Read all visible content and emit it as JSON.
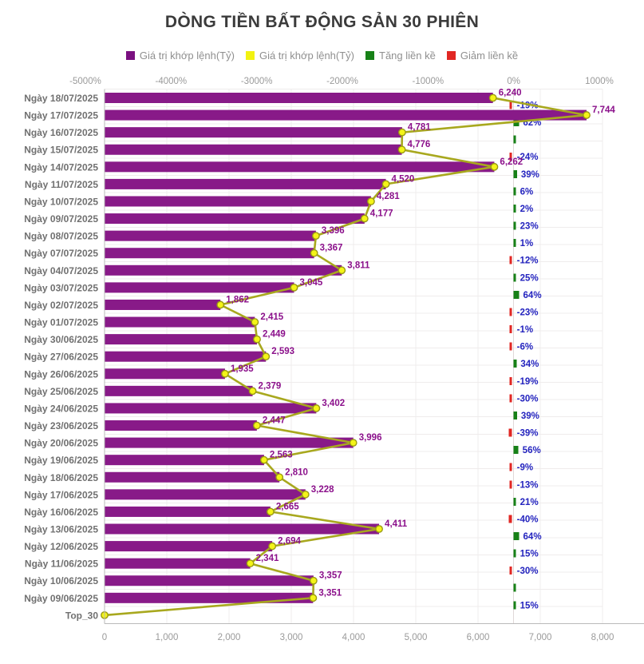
{
  "title": "DÒNG TIỀN BẤT ĐỘNG SẢN 30 PHIÊN",
  "legend": [
    {
      "name": "legend-bar-series",
      "label": "Giá trị khớp lệnh(Tỷ)",
      "color": "#7a1080"
    },
    {
      "name": "legend-line-series",
      "label": "Giá trị khớp lệnh(Tỷ)",
      "color": "#f2f211"
    },
    {
      "name": "legend-increase",
      "label": "Tăng liền kề",
      "color": "#178117"
    },
    {
      "name": "legend-decrease",
      "label": "Giảm liền kề",
      "color": "#e12723"
    }
  ],
  "chart_data": {
    "type": "bar",
    "orientation": "horizontal",
    "title": "DÒNG TIỀN BẤT ĐỘNG SẢN 30 PHIÊN",
    "legend_position": "top",
    "grid": true,
    "top_axis": {
      "unit": "%",
      "range": [
        -5000,
        1000
      ],
      "ticks": [
        -5000,
        -4000,
        -3000,
        -2000,
        -1000,
        0,
        1000
      ],
      "tick_labels": [
        "-5000%",
        "-4000%",
        "-3000%",
        "-2000%",
        "-1000%",
        "0%",
        "1000%"
      ]
    },
    "bottom_axis": {
      "range": [
        0,
        8000
      ],
      "ticks": [
        0,
        1000,
        2000,
        3000,
        4000,
        5000,
        6000,
        7000,
        8000
      ],
      "tick_labels": [
        "0",
        "1,000",
        "2,000",
        "3,000",
        "4,000",
        "5,000",
        "6,000",
        "7,000",
        "8,000"
      ]
    },
    "series_names": {
      "bar": "Giá trị khớp lệnh(Tỷ)",
      "line": "Giá trị khớp lệnh(Tỷ)",
      "increase": "Tăng liền kề",
      "decrease": "Giảm liền kề"
    },
    "rows": [
      {
        "category": "Ngày 18/07/2025",
        "value": 6240,
        "value_label": "6,240",
        "delta_pct": -19,
        "delta_label": "-19%"
      },
      {
        "category": "Ngày 17/07/2025",
        "value": 7744,
        "value_label": "7,744",
        "delta_pct": 62,
        "delta_label": "62%"
      },
      {
        "category": "Ngày 16/07/2025",
        "value": 4781,
        "value_label": "4,781",
        "delta_pct": 0,
        "delta_label": ""
      },
      {
        "category": "Ngày 15/07/2025",
        "value": 4776,
        "value_label": "4,776",
        "delta_pct": -24,
        "delta_label": "-24%"
      },
      {
        "category": "Ngày 14/07/2025",
        "value": 6262,
        "value_label": "6,262",
        "delta_pct": 39,
        "delta_label": "39%"
      },
      {
        "category": "Ngày 11/07/2025",
        "value": 4520,
        "value_label": "4,520",
        "delta_pct": 6,
        "delta_label": "6%"
      },
      {
        "category": "Ngày 10/07/2025",
        "value": 4281,
        "value_label": "4,281",
        "delta_pct": 2,
        "delta_label": "2%"
      },
      {
        "category": "Ngày 09/07/2025",
        "value": 4177,
        "value_label": "4,177",
        "delta_pct": 23,
        "delta_label": "23%"
      },
      {
        "category": "Ngày 08/07/2025",
        "value": 3396,
        "value_label": "3,396",
        "delta_pct": 1,
        "delta_label": "1%"
      },
      {
        "category": "Ngày 07/07/2025",
        "value": 3367,
        "value_label": "3,367",
        "delta_pct": -12,
        "delta_label": "-12%"
      },
      {
        "category": "Ngày 04/07/2025",
        "value": 3811,
        "value_label": "3,811",
        "delta_pct": 25,
        "delta_label": "25%"
      },
      {
        "category": "Ngày 03/07/2025",
        "value": 3045,
        "value_label": "3,045",
        "delta_pct": 64,
        "delta_label": "64%"
      },
      {
        "category": "Ngày 02/07/2025",
        "value": 1862,
        "value_label": "1,862",
        "delta_pct": -23,
        "delta_label": "-23%"
      },
      {
        "category": "Ngày 01/07/2025",
        "value": 2415,
        "value_label": "2,415",
        "delta_pct": -1,
        "delta_label": "-1%"
      },
      {
        "category": "Ngày 30/06/2025",
        "value": 2449,
        "value_label": "2,449",
        "delta_pct": -6,
        "delta_label": "-6%"
      },
      {
        "category": "Ngày 27/06/2025",
        "value": 2593,
        "value_label": "2,593",
        "delta_pct": 34,
        "delta_label": "34%"
      },
      {
        "category": "Ngày 26/06/2025",
        "value": 1935,
        "value_label": "1,935",
        "delta_pct": -19,
        "delta_label": "-19%"
      },
      {
        "category": "Ngày 25/06/2025",
        "value": 2379,
        "value_label": "2,379",
        "delta_pct": -30,
        "delta_label": "-30%"
      },
      {
        "category": "Ngày 24/06/2025",
        "value": 3402,
        "value_label": "3,402",
        "delta_pct": 39,
        "delta_label": "39%"
      },
      {
        "category": "Ngày 23/06/2025",
        "value": 2447,
        "value_label": "2,447",
        "delta_pct": -39,
        "delta_label": "-39%"
      },
      {
        "category": "Ngày 20/06/2025",
        "value": 3996,
        "value_label": "3,996",
        "delta_pct": 56,
        "delta_label": "56%"
      },
      {
        "category": "Ngày 19/06/2025",
        "value": 2563,
        "value_label": "2,563",
        "delta_pct": -9,
        "delta_label": "-9%"
      },
      {
        "category": "Ngày 18/06/2025",
        "value": 2810,
        "value_label": "2,810",
        "delta_pct": -13,
        "delta_label": "-13%"
      },
      {
        "category": "Ngày 17/06/2025",
        "value": 3228,
        "value_label": "3,228",
        "delta_pct": 21,
        "delta_label": "21%"
      },
      {
        "category": "Ngày 16/06/2025",
        "value": 2665,
        "value_label": "2,665",
        "delta_pct": -40,
        "delta_label": "-40%"
      },
      {
        "category": "Ngày 13/06/2025",
        "value": 4411,
        "value_label": "4,411",
        "delta_pct": 64,
        "delta_label": "64%"
      },
      {
        "category": "Ngày 12/06/2025",
        "value": 2694,
        "value_label": "2,694",
        "delta_pct": 15,
        "delta_label": "15%"
      },
      {
        "category": "Ngày 11/06/2025",
        "value": 2341,
        "value_label": "2,341",
        "delta_pct": -30,
        "delta_label": "-30%"
      },
      {
        "category": "Ngày 10/06/2025",
        "value": 3357,
        "value_label": "3,357",
        "delta_pct": 0,
        "delta_label": ""
      },
      {
        "category": "Ngày 09/06/2025",
        "value": 3351,
        "value_label": "3,351",
        "delta_pct": 15,
        "delta_label": "15%"
      },
      {
        "category": "Top_30",
        "value": 0,
        "value_label": "",
        "delta_pct": null,
        "delta_label": ""
      }
    ]
  },
  "colors": {
    "bar": "#881a88",
    "line": "#a8a81e",
    "marker_fill": "#f4f418",
    "marker_stroke": "#9a9a14",
    "value_label": "#8b108b",
    "pct_label": "#2424bf",
    "increase": "#178117",
    "decrease": "#e12723",
    "axis_text": "#9a9a9a",
    "category_text": "#707070",
    "title_text": "#3b3b3b",
    "legend_text": "#8f8f8f",
    "grid": "#efecec",
    "grid_zero": "#e0d8d8",
    "axis_line": "#b9b9b9"
  }
}
